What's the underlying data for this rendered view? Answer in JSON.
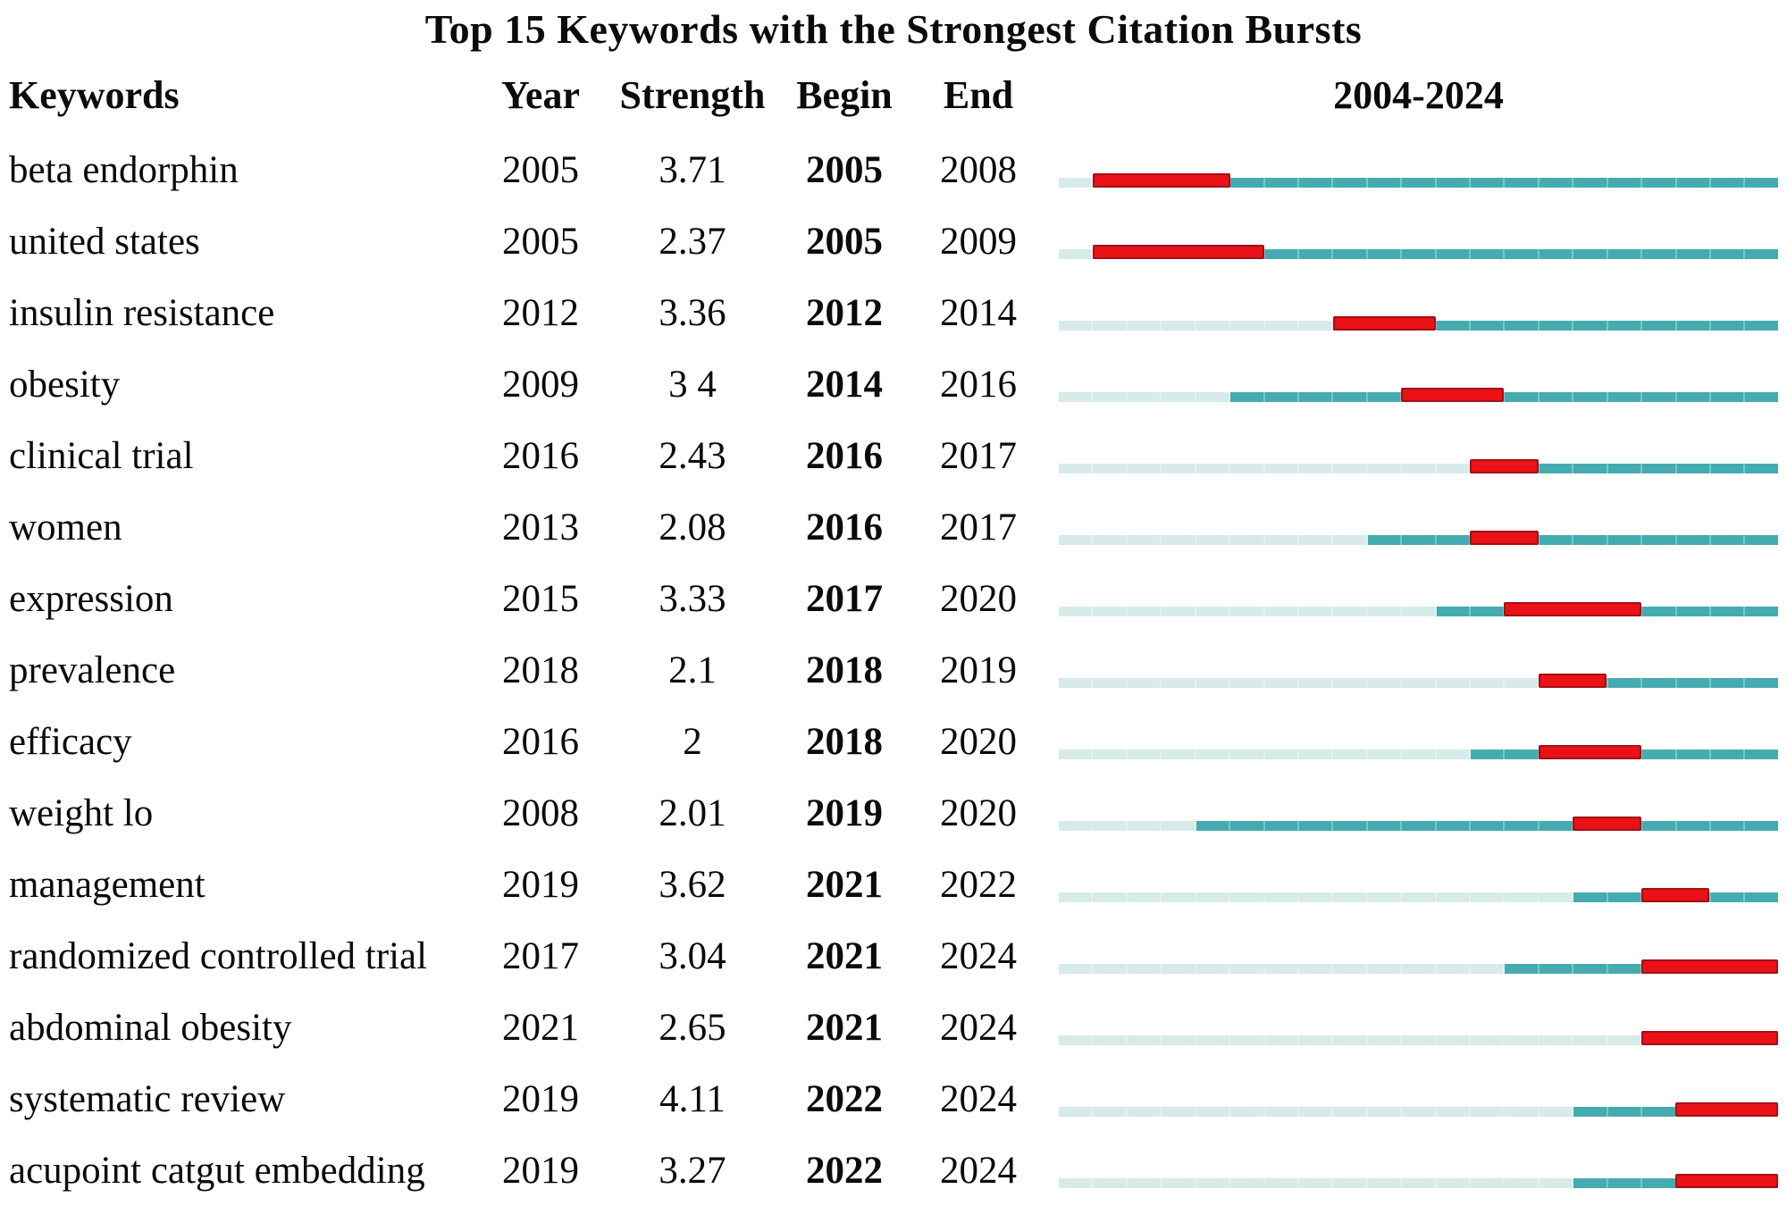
{
  "title": "Top 15 Keywords with the Strongest Citation Bursts",
  "columns": {
    "keywords": "Keywords",
    "year": "Year",
    "strength": "Strength",
    "begin": "Begin",
    "end": "End",
    "timeline": "2004-2024"
  },
  "colors": {
    "burst": "#ea1117",
    "burst_border": "#a31116",
    "active": "#44acb0",
    "inactive": "#d6ebea",
    "text": "#0b0b0b",
    "background": "#ffffff"
  },
  "chart_data": {
    "type": "table",
    "title": "Top 15 Keywords with the Strongest Citation Bursts",
    "columns": [
      "Keywords",
      "Year",
      "Strength",
      "Begin",
      "End",
      "2004-2024"
    ],
    "range": [
      2004,
      2024
    ],
    "rows": [
      {
        "keyword": "beta endorphin",
        "year": 2005,
        "strength": "3.71",
        "begin": 2005,
        "end": 2008
      },
      {
        "keyword": "united states",
        "year": 2005,
        "strength": "2.37",
        "begin": 2005,
        "end": 2009
      },
      {
        "keyword": "insulin resistance",
        "year": 2012,
        "strength": "3.36",
        "begin": 2012,
        "end": 2014
      },
      {
        "keyword": "obesity",
        "year": 2009,
        "strength": "3 4",
        "begin": 2014,
        "end": 2016
      },
      {
        "keyword": "clinical trial",
        "year": 2016,
        "strength": "2.43",
        "begin": 2016,
        "end": 2017
      },
      {
        "keyword": "women",
        "year": 2013,
        "strength": "2.08",
        "begin": 2016,
        "end": 2017
      },
      {
        "keyword": "expression",
        "year": 2015,
        "strength": "3.33",
        "begin": 2017,
        "end": 2020
      },
      {
        "keyword": "prevalence",
        "year": 2018,
        "strength": "2.1",
        "begin": 2018,
        "end": 2019
      },
      {
        "keyword": "efficacy",
        "year": 2016,
        "strength": "2",
        "begin": 2018,
        "end": 2020
      },
      {
        "keyword": "weight lo",
        "year": 2008,
        "strength": "2.01",
        "begin": 2019,
        "end": 2020
      },
      {
        "keyword": "management",
        "year": 2019,
        "strength": "3.62",
        "begin": 2021,
        "end": 2022
      },
      {
        "keyword": "randomized controlled trial",
        "year": 2017,
        "strength": "3.04",
        "begin": 2021,
        "end": 2024
      },
      {
        "keyword": "abdominal obesity",
        "year": 2021,
        "strength": "2.65",
        "begin": 2021,
        "end": 2024
      },
      {
        "keyword": "systematic review",
        "year": 2019,
        "strength": "4.11",
        "begin": 2022,
        "end": 2024
      },
      {
        "keyword": "acupoint catgut embedding",
        "year": 2019,
        "strength": "3.27",
        "begin": 2022,
        "end": 2024
      }
    ]
  }
}
